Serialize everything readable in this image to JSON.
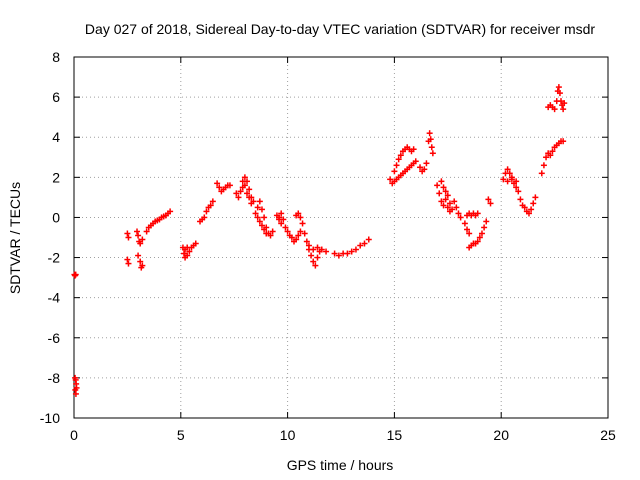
{
  "chart_data": {
    "type": "scatter",
    "title": "Day 027 of 2018, Sidereal Day-to-day VTEC variation (SDTVAR) for receiver msdr",
    "xlabel": "GPS time / hours",
    "ylabel": "SDTVAR / TECUs",
    "xlim": [
      0,
      25
    ],
    "ylim": [
      -10,
      8
    ],
    "xticks": [
      0,
      5,
      10,
      15,
      20,
      25
    ],
    "yticks": [
      -10,
      -8,
      -6,
      -4,
      -2,
      0,
      2,
      4,
      6,
      8
    ],
    "grid": true,
    "marker": "plus",
    "color": "#ff0000",
    "series": [
      {
        "points": [
          [
            0.02,
            -2.85
          ],
          [
            0.05,
            -2.9
          ],
          [
            0.08,
            -2.85
          ],
          [
            0.05,
            -8.0
          ],
          [
            0.08,
            -8.1
          ],
          [
            0.1,
            -8.3
          ],
          [
            0.06,
            -8.6
          ],
          [
            0.09,
            -8.8
          ],
          [
            0.12,
            -8.5
          ],
          [
            2.5,
            -0.8
          ],
          [
            2.55,
            -1.0
          ],
          [
            2.5,
            -2.1
          ],
          [
            2.55,
            -2.3
          ],
          [
            2.95,
            -0.7
          ],
          [
            3.0,
            -0.9
          ],
          [
            3.05,
            -1.2
          ],
          [
            3.1,
            -1.3
          ],
          [
            3.2,
            -1.1
          ],
          [
            3.0,
            -1.9
          ],
          [
            3.1,
            -2.2
          ],
          [
            3.15,
            -2.5
          ],
          [
            3.2,
            -2.4
          ],
          [
            3.4,
            -0.7
          ],
          [
            3.5,
            -0.5
          ],
          [
            3.6,
            -0.4
          ],
          [
            3.7,
            -0.3
          ],
          [
            3.8,
            -0.2
          ],
          [
            3.9,
            -0.15
          ],
          [
            4.0,
            -0.1
          ],
          [
            4.1,
            0.0
          ],
          [
            4.2,
            0.05
          ],
          [
            4.3,
            0.1
          ],
          [
            4.4,
            0.2
          ],
          [
            4.5,
            0.3
          ],
          [
            5.1,
            -1.5
          ],
          [
            5.15,
            -1.8
          ],
          [
            5.2,
            -2.0
          ],
          [
            5.3,
            -1.9
          ],
          [
            5.4,
            -1.7
          ],
          [
            5.5,
            -1.5
          ],
          [
            5.6,
            -1.4
          ],
          [
            5.7,
            -1.3
          ],
          [
            5.2,
            -1.6
          ],
          [
            5.3,
            -1.5
          ],
          [
            5.9,
            -0.2
          ],
          [
            6.0,
            -0.1
          ],
          [
            6.1,
            0.0
          ],
          [
            6.2,
            0.3
          ],
          [
            6.3,
            0.5
          ],
          [
            6.4,
            0.6
          ],
          [
            6.5,
            0.8
          ],
          [
            6.7,
            1.7
          ],
          [
            6.8,
            1.5
          ],
          [
            6.9,
            1.3
          ],
          [
            7.0,
            1.4
          ],
          [
            7.1,
            1.5
          ],
          [
            7.2,
            1.6
          ],
          [
            7.3,
            1.6
          ],
          [
            7.6,
            1.2
          ],
          [
            7.7,
            1.0
          ],
          [
            7.8,
            1.3
          ],
          [
            7.9,
            1.8
          ],
          [
            8.0,
            2.0
          ],
          [
            8.1,
            1.8
          ],
          [
            8.2,
            1.4
          ],
          [
            8.3,
            1.0
          ],
          [
            8.4,
            0.8
          ],
          [
            7.9,
            1.5
          ],
          [
            8.0,
            1.6
          ],
          [
            8.1,
            1.2
          ],
          [
            8.2,
            1.0
          ],
          [
            8.3,
            0.7
          ],
          [
            8.5,
            0.2
          ],
          [
            8.6,
            0.5
          ],
          [
            8.7,
            0.8
          ],
          [
            8.8,
            0.4
          ],
          [
            8.9,
            0.0
          ],
          [
            9.0,
            -0.5
          ],
          [
            9.1,
            -0.8
          ],
          [
            9.2,
            -0.9
          ],
          [
            9.3,
            -0.7
          ],
          [
            8.6,
            0.0
          ],
          [
            8.7,
            -0.2
          ],
          [
            8.8,
            -0.4
          ],
          [
            8.9,
            -0.6
          ],
          [
            9.0,
            -0.8
          ],
          [
            9.5,
            0.1
          ],
          [
            9.6,
            -0.1
          ],
          [
            9.7,
            -0.3
          ],
          [
            9.8,
            -0.1
          ],
          [
            9.9,
            -0.5
          ],
          [
            10.0,
            -0.7
          ],
          [
            10.1,
            -0.9
          ],
          [
            9.6,
            0.0
          ],
          [
            9.7,
            0.2
          ],
          [
            10.2,
            -1.0
          ],
          [
            10.3,
            -1.2
          ],
          [
            10.4,
            -1.1
          ],
          [
            10.5,
            -0.9
          ],
          [
            10.6,
            -0.7
          ],
          [
            10.4,
            0.1
          ],
          [
            10.5,
            0.2
          ],
          [
            10.6,
            0.0
          ],
          [
            10.7,
            -0.3
          ],
          [
            10.8,
            -0.8
          ],
          [
            10.9,
            -1.2
          ],
          [
            11.0,
            -1.6
          ],
          [
            11.1,
            -1.9
          ],
          [
            11.2,
            -2.2
          ],
          [
            11.3,
            -2.4
          ],
          [
            11.4,
            -2.0
          ],
          [
            11.5,
            -1.7
          ],
          [
            11.0,
            -1.4
          ],
          [
            11.2,
            -1.6
          ],
          [
            11.4,
            -1.5
          ],
          [
            11.6,
            -1.6
          ],
          [
            11.8,
            -1.7
          ],
          [
            12.2,
            -1.8
          ],
          [
            12.4,
            -1.9
          ],
          [
            12.6,
            -1.8
          ],
          [
            12.8,
            -1.8
          ],
          [
            13.0,
            -1.7
          ],
          [
            13.2,
            -1.6
          ],
          [
            13.4,
            -1.4
          ],
          [
            13.6,
            -1.3
          ],
          [
            13.8,
            -1.1
          ],
          [
            14.8,
            1.9
          ],
          [
            14.9,
            1.7
          ],
          [
            15.0,
            1.8
          ],
          [
            15.1,
            1.9
          ],
          [
            15.2,
            2.0
          ],
          [
            15.3,
            2.1
          ],
          [
            15.4,
            2.2
          ],
          [
            15.5,
            2.3
          ],
          [
            15.6,
            2.4
          ],
          [
            15.7,
            2.5
          ],
          [
            15.8,
            2.6
          ],
          [
            15.9,
            2.7
          ],
          [
            16.0,
            2.8
          ],
          [
            15.0,
            2.3
          ],
          [
            15.1,
            2.6
          ],
          [
            15.2,
            2.9
          ],
          [
            15.3,
            3.1
          ],
          [
            15.4,
            3.3
          ],
          [
            15.5,
            3.4
          ],
          [
            15.6,
            3.5
          ],
          [
            15.7,
            3.4
          ],
          [
            15.8,
            3.3
          ],
          [
            15.9,
            3.4
          ],
          [
            16.2,
            2.5
          ],
          [
            16.3,
            2.3
          ],
          [
            16.4,
            2.4
          ],
          [
            16.5,
            2.7
          ],
          [
            16.6,
            3.8
          ],
          [
            16.65,
            4.2
          ],
          [
            16.7,
            3.9
          ],
          [
            16.75,
            3.5
          ],
          [
            16.8,
            3.2
          ],
          [
            17.0,
            1.6
          ],
          [
            17.1,
            1.2
          ],
          [
            17.2,
            0.8
          ],
          [
            17.3,
            0.6
          ],
          [
            17.4,
            0.9
          ],
          [
            17.5,
            1.1
          ],
          [
            17.6,
            0.7
          ],
          [
            17.7,
            0.4
          ],
          [
            17.8,
            0.8
          ],
          [
            17.9,
            0.5
          ],
          [
            18.0,
            0.2
          ],
          [
            18.1,
            0.0
          ],
          [
            17.2,
            1.8
          ],
          [
            17.3,
            1.5
          ],
          [
            17.4,
            1.3
          ],
          [
            17.5,
            0.5
          ],
          [
            17.6,
            0.3
          ],
          [
            18.3,
            -0.3
          ],
          [
            18.4,
            -0.6
          ],
          [
            18.5,
            -0.8
          ],
          [
            18.4,
            0.1
          ],
          [
            18.5,
            0.2
          ],
          [
            18.6,
            0.1
          ],
          [
            18.7,
            0.2
          ],
          [
            18.8,
            0.1
          ],
          [
            18.9,
            0.2
          ],
          [
            18.5,
            -1.5
          ],
          [
            18.6,
            -1.4
          ],
          [
            18.7,
            -1.3
          ],
          [
            18.8,
            -1.3
          ],
          [
            18.9,
            -1.2
          ],
          [
            19.0,
            -1.0
          ],
          [
            19.1,
            -0.8
          ],
          [
            19.2,
            -0.5
          ],
          [
            19.3,
            -0.2
          ],
          [
            19.4,
            0.9
          ],
          [
            19.5,
            0.7
          ],
          [
            20.1,
            1.9
          ],
          [
            20.2,
            2.2
          ],
          [
            20.3,
            2.4
          ],
          [
            20.4,
            2.2
          ],
          [
            20.5,
            1.9
          ],
          [
            20.6,
            1.7
          ],
          [
            20.7,
            1.5
          ],
          [
            20.8,
            1.3
          ],
          [
            20.9,
            0.9
          ],
          [
            21.0,
            0.6
          ],
          [
            21.1,
            0.5
          ],
          [
            21.2,
            0.3
          ],
          [
            21.3,
            0.2
          ],
          [
            21.4,
            0.4
          ],
          [
            21.5,
            0.7
          ],
          [
            21.6,
            1.0
          ],
          [
            20.3,
            1.8
          ],
          [
            20.5,
            2.0
          ],
          [
            20.7,
            1.8
          ],
          [
            21.9,
            2.2
          ],
          [
            22.0,
            2.6
          ],
          [
            22.1,
            3.0
          ],
          [
            22.2,
            3.2
          ],
          [
            22.3,
            3.1
          ],
          [
            22.4,
            3.3
          ],
          [
            22.5,
            3.5
          ],
          [
            22.6,
            3.6
          ],
          [
            22.7,
            3.7
          ],
          [
            22.8,
            3.8
          ],
          [
            22.9,
            3.8
          ],
          [
            22.2,
            5.5
          ],
          [
            22.3,
            5.6
          ],
          [
            22.4,
            5.5
          ],
          [
            22.5,
            5.4
          ],
          [
            22.6,
            5.8
          ],
          [
            22.65,
            6.3
          ],
          [
            22.7,
            6.5
          ],
          [
            22.75,
            6.2
          ],
          [
            22.8,
            5.8
          ],
          [
            22.85,
            5.6
          ],
          [
            22.9,
            5.4
          ],
          [
            22.95,
            5.7
          ]
        ]
      }
    ]
  }
}
